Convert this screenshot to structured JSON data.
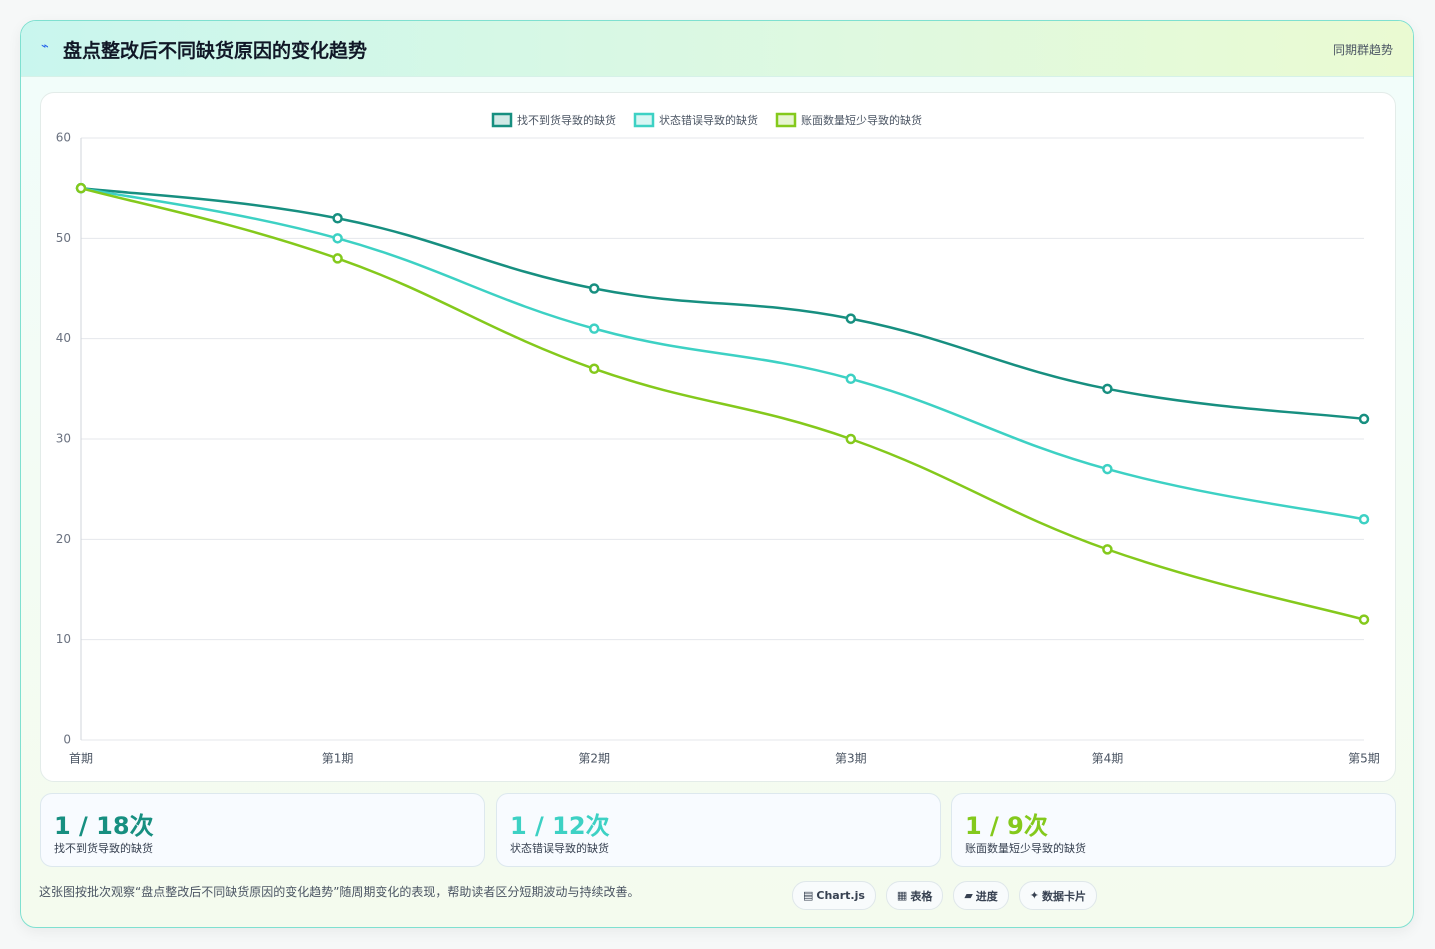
{
  "header": {
    "title": "盘点整改后不同缺货原因的变化趋势",
    "badge": "同期群趋势"
  },
  "chart_data": {
    "type": "line",
    "categories": [
      "首期",
      "第1期",
      "第2期",
      "第3期",
      "第4期",
      "第5期"
    ],
    "series": [
      {
        "name": "找不到货导致的缺货",
        "color": "#178f80",
        "values": [
          55,
          52,
          45,
          42,
          35,
          32
        ]
      },
      {
        "name": "状态错误导致的缺货",
        "color": "#3dd1c4",
        "values": [
          55,
          50,
          41,
          36,
          27,
          22
        ]
      },
      {
        "name": "账面数量短少导致的缺货",
        "color": "#84c91c",
        "values": [
          55,
          48,
          37,
          30,
          19,
          12
        ]
      }
    ],
    "ylim": [
      0,
      60
    ],
    "yticks": [
      0,
      10,
      20,
      30,
      40,
      50,
      60
    ],
    "grid": true,
    "legend": "top"
  },
  "stats": [
    {
      "value": "1 / 18次",
      "label": "找不到货导致的缺货"
    },
    {
      "value": "1 / 12次",
      "label": "状态错误导致的缺货"
    },
    {
      "value": "1 / 9次",
      "label": "账面数量短少导致的缺货"
    }
  ],
  "footer": {
    "note": "这张图按批次观察“盘点整改后不同缺货原因的变化趋势”随周期变化的表现，帮助读者区分短期波动与持续改善。",
    "chips": [
      "Chart.js",
      "表格",
      "进度",
      "数据卡片"
    ]
  }
}
